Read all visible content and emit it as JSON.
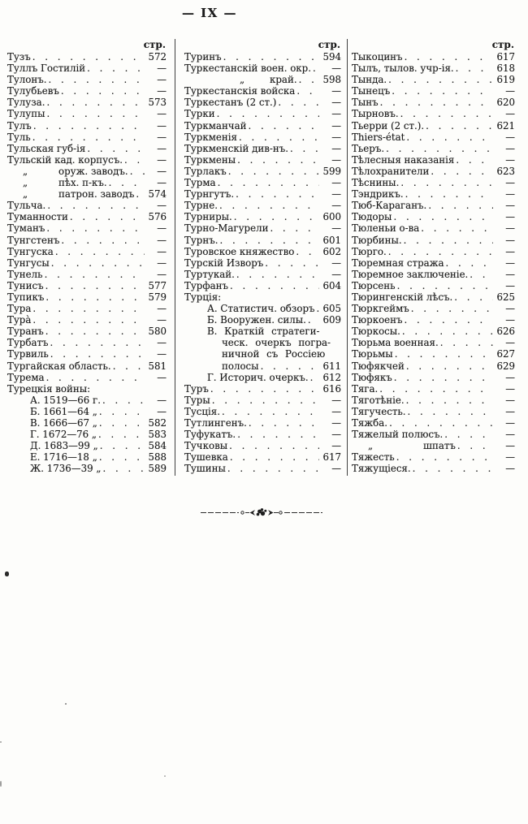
{
  "page": {
    "header": "— IX —"
  },
  "colors": {
    "paper": "#fdfdfb",
    "ink": "#1b1b1b",
    "rule": "#3f3f3f"
  },
  "index": {
    "page_col_label": "стр.",
    "columns": [
      {
        "entries": [
          {
            "t": "Тузъ",
            "p": "572"
          },
          {
            "t": "Туллъ Гостилій",
            "p": "—"
          },
          {
            "t": "Тулонъ.",
            "p": "—"
          },
          {
            "t": "Тулубьевъ",
            "p": "—"
          },
          {
            "t": "Тулуза.",
            "p": "573"
          },
          {
            "t": "Тулупы",
            "p": "—"
          },
          {
            "t": "Тулъ",
            "p": "—"
          },
          {
            "t": "Туль",
            "p": "—"
          },
          {
            "t": "Тульская губ-ія",
            "p": "—"
          },
          {
            "t": "Тульскій кад. корпусъ.",
            "p": "—"
          },
          {
            "pre": "„",
            "t": "оруж. заводъ.",
            "p": "—",
            "i": 3
          },
          {
            "pre": "„",
            "t": "пѣх. п-къ.",
            "p": "—",
            "i": 3
          },
          {
            "pre": "„",
            "t": "патрон. заводъ",
            "p": "574",
            "i": 3
          },
          {
            "t": "Тульча.",
            "p": "—"
          },
          {
            "t": "Туманности",
            "p": "576"
          },
          {
            "t": "Туманъ",
            "p": "—"
          },
          {
            "t": "Тунгстенъ",
            "p": "—"
          },
          {
            "t": "Тунгуска",
            "p": "—"
          },
          {
            "t": "Тунгусы",
            "p": "—"
          },
          {
            "t": "Тунель",
            "p": "—"
          },
          {
            "t": "Тунисъ",
            "p": "577"
          },
          {
            "t": "Тупикъ",
            "p": "579"
          },
          {
            "t": "Тура",
            "p": "—"
          },
          {
            "t": "Тура̀",
            "p": "—"
          },
          {
            "t": "Туранъ",
            "p": "580"
          },
          {
            "t": "Турбатъ",
            "p": "—"
          },
          {
            "t": "Турвиль",
            "p": "—"
          },
          {
            "t": "Тургайская область.",
            "p": "581"
          },
          {
            "t": "Турема",
            "p": "—"
          },
          {
            "t": "Турецкія войны:",
            "p": "",
            "d": false
          },
          {
            "t": "А. 1519—66 г.",
            "p": "—",
            "i": 1
          },
          {
            "t": "Б. 1661—64 „",
            "p": "—",
            "i": 1
          },
          {
            "t": "В. 1666—67 „",
            "p": "582",
            "i": 1
          },
          {
            "t": "Г. 1672—76 „",
            "p": "583",
            "i": 1
          },
          {
            "t": "Д. 1683—99 „",
            "p": "584",
            "i": 1
          },
          {
            "t": "Е. 1716—18 „",
            "p": "588",
            "i": 1
          },
          {
            "t": "Ж. 1736—39 „",
            "p": "589",
            "i": 1
          }
        ]
      },
      {
        "entries": [
          {
            "t": "Туринъ",
            "p": "594"
          },
          {
            "t": "Туркестанскій воен. окр.",
            "p": "—"
          },
          {
            "pre": "„",
            "t": "край.",
            "p": "598",
            "i": 4
          },
          {
            "t": "Туркестанскія войска",
            "p": "—"
          },
          {
            "t": "Туркестанъ (2 ст.)",
            "p": "—"
          },
          {
            "t": "Турки",
            "p": "—"
          },
          {
            "t": "Туркманчай",
            "p": "—"
          },
          {
            "t": "Туркменія",
            "p": "—"
          },
          {
            "t": "Туркменскій див-нъ.",
            "p": "—"
          },
          {
            "t": "Туркмены",
            "p": "—"
          },
          {
            "t": "Турлакъ",
            "p": "599"
          },
          {
            "t": "Турма",
            "p": "—"
          },
          {
            "t": "Турнгутъ.",
            "p": "—"
          },
          {
            "t": "Турне.",
            "p": "—"
          },
          {
            "t": "Турниры.",
            "p": "600"
          },
          {
            "t": "Турно-Магурели",
            "p": "—"
          },
          {
            "t": "Турнъ.",
            "p": "601"
          },
          {
            "t": "Туровское княжество",
            "p": "602"
          },
          {
            "t": "Турскій Изворъ",
            "p": "—"
          },
          {
            "t": "Туртукай.",
            "p": "—"
          },
          {
            "t": "Турфанъ",
            "p": "604"
          },
          {
            "t": "Турція:",
            "p": "",
            "d": false
          },
          {
            "t": "А. Статистич. обзоръ",
            "p": "605",
            "i": 1
          },
          {
            "t": "Б. Вооружен. силы.",
            "p": "609",
            "i": 1
          },
          {
            "t": "В. Краткій стратеги-",
            "p": "",
            "d": false,
            "i": 1,
            "s": true
          },
          {
            "t": "ческ. очеркъ погра-",
            "p": "",
            "d": false,
            "i": 2,
            "s": true
          },
          {
            "t": "ничной съ Россіею",
            "p": "",
            "d": false,
            "i": 2,
            "s": true
          },
          {
            "t": "полосы",
            "p": "611",
            "i": 2
          },
          {
            "t": "Г. Историч. очеркъ.",
            "p": "612",
            "i": 1
          },
          {
            "t": "Туръ",
            "p": "616"
          },
          {
            "t": "Туры",
            "p": "—"
          },
          {
            "t": "Тусція.",
            "p": "—"
          },
          {
            "t": "Тутлингенъ.",
            "p": "—"
          },
          {
            "t": "Туфукатъ.",
            "p": "—"
          },
          {
            "t": "Тучковы",
            "p": "—"
          },
          {
            "t": "Тушевка",
            "p": "617"
          },
          {
            "t": "Тушины",
            "p": "—"
          }
        ]
      },
      {
        "entries": [
          {
            "t": "Тыкоцинъ",
            "p": "617"
          },
          {
            "t": "Тылъ, тылов. учр-ія.",
            "p": "618"
          },
          {
            "t": "Тында.",
            "p": "619"
          },
          {
            "t": "Тынецъ",
            "p": "—"
          },
          {
            "t": "Тынъ",
            "p": "620"
          },
          {
            "t": "Тырновъ.",
            "p": "—"
          },
          {
            "t": "Тьерри (2 ст.).",
            "p": "621"
          },
          {
            "t": "Thiers-état",
            "p": "—"
          },
          {
            "t": "Тьеръ.",
            "p": "—"
          },
          {
            "t": "Тѣлесныя наказанія",
            "p": "—"
          },
          {
            "t": "Тѣлохранители",
            "p": "623"
          },
          {
            "t": "Тѣснины.",
            "p": "—"
          },
          {
            "t": "Тэндрикъ.",
            "p": "—"
          },
          {
            "t": "Тюб-Караганъ.",
            "p": "—"
          },
          {
            "t": "Тюдоры",
            "p": "—"
          },
          {
            "t": "Тюленьи о-ва",
            "p": "—"
          },
          {
            "t": "Тюрбины.",
            "p": "—"
          },
          {
            "t": "Тюрго.",
            "p": "—"
          },
          {
            "t": "Тюремная стража",
            "p": "—"
          },
          {
            "t": "Тюремное заключеніе.",
            "p": "—"
          },
          {
            "t": "Тюрсень",
            "p": "—"
          },
          {
            "t": "Тюрингенскій лѣсъ.",
            "p": "625"
          },
          {
            "t": "Тюркгеймъ",
            "p": "—"
          },
          {
            "t": "Тюркоенъ",
            "p": "—"
          },
          {
            "t": "Тюркосы.",
            "p": "626"
          },
          {
            "t": "Тюрьма военная.",
            "p": "—"
          },
          {
            "t": "Тюрьмы",
            "p": "627"
          },
          {
            "t": "Тюфякчей",
            "p": "629"
          },
          {
            "t": "Тюфякъ",
            "p": "—"
          },
          {
            "t": "Тяга.",
            "p": "—"
          },
          {
            "t": "Тяготѣніе.",
            "p": "—"
          },
          {
            "t": "Тягучесть.",
            "p": "—"
          },
          {
            "t": "Тяжба.",
            "p": "—"
          },
          {
            "t": "Тяжелый полюсъ.",
            "p": "—"
          },
          {
            "pre": "„",
            "t": "шпатъ",
            "p": "—",
            "i": 5
          },
          {
            "t": "Тяжесть",
            "p": "—"
          },
          {
            "t": "Тяжущіеся.",
            "p": "—"
          }
        ]
      }
    ]
  }
}
